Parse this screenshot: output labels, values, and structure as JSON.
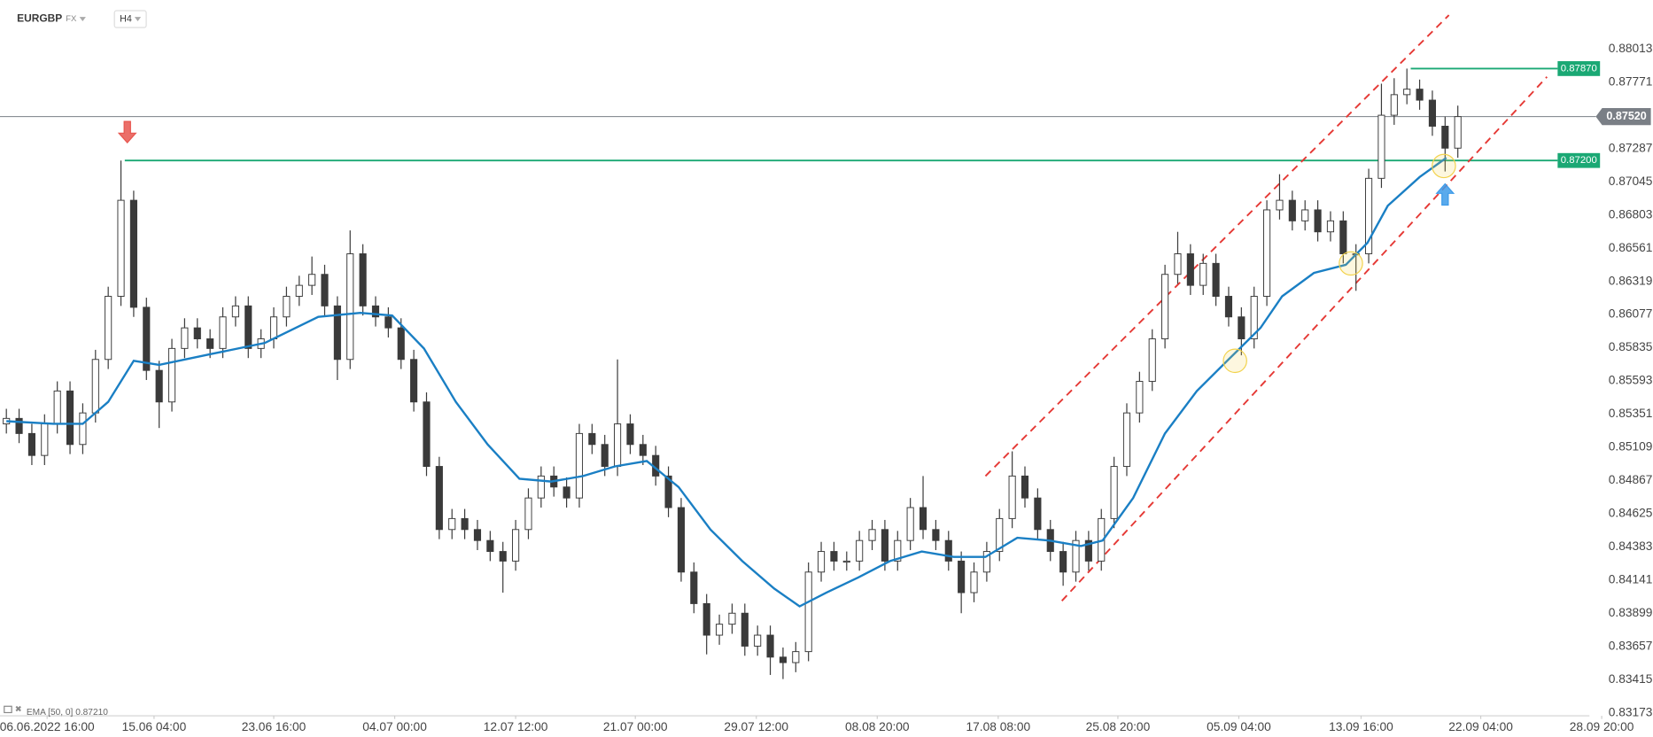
{
  "header": {
    "symbol": "EURGBP",
    "market": "FX",
    "interval": "H4"
  },
  "indicator_label": "EMA [50, 0] 0.87210",
  "chart_data": {
    "type": "candlestick",
    "up_color": "#ffffff",
    "down_color": "#3a3a3a",
    "wick_color": "#3a3a3a",
    "xlim": [
      -0.5,
      126
    ],
    "ylim": [
      0.8316,
      0.8837
    ],
    "grid": false,
    "yticks": [
      0.88013,
      0.87771,
      0.87287,
      0.87045,
      0.86803,
      0.86561,
      0.86319,
      0.86077,
      0.85835,
      0.85593,
      0.85351,
      0.85109,
      0.84867,
      0.84625,
      0.84383,
      0.84141,
      0.83899,
      0.83657,
      0.83415,
      0.83173
    ],
    "xticks": [
      {
        "value": 3.2,
        "label": "06.06.2022  16:00"
      },
      {
        "value": 11.6,
        "label": "15.06  04:00"
      },
      {
        "value": 21.0,
        "label": "23.06  16:00"
      },
      {
        "value": 30.5,
        "label": "04.07  00:00"
      },
      {
        "value": 40.0,
        "label": "12.07  12:00"
      },
      {
        "value": 49.4,
        "label": "21.07  00:00"
      },
      {
        "value": 58.9,
        "label": "29.07  12:00"
      },
      {
        "value": 68.4,
        "label": "08.08  20:00"
      },
      {
        "value": 77.9,
        "label": "17.08  08:00"
      },
      {
        "value": 87.3,
        "label": "25.08  20:00"
      },
      {
        "value": 96.8,
        "label": "05.09  04:00"
      },
      {
        "value": 106.4,
        "label": "13.09  16:00"
      },
      {
        "value": 115.8,
        "label": "22.09  04:00"
      },
      {
        "value": 125.3,
        "label": "28.09  20:00"
      }
    ],
    "ohlc": [
      [
        0.8528,
        0.8539,
        0.8521,
        0.8532
      ],
      [
        0.8532,
        0.8539,
        0.8514,
        0.8521
      ],
      [
        0.8521,
        0.8528,
        0.8498,
        0.8505
      ],
      [
        0.8505,
        0.8535,
        0.8498,
        0.8528
      ],
      [
        0.8528,
        0.8559,
        0.8521,
        0.8552
      ],
      [
        0.8552,
        0.8559,
        0.8506,
        0.8513
      ],
      [
        0.8513,
        0.8543,
        0.8506,
        0.8536
      ],
      [
        0.8536,
        0.8582,
        0.8529,
        0.8575
      ],
      [
        0.8575,
        0.8628,
        0.8568,
        0.8621
      ],
      [
        0.8621,
        0.872,
        0.8614,
        0.8691
      ],
      [
        0.8691,
        0.8698,
        0.8606,
        0.8613
      ],
      [
        0.8613,
        0.862,
        0.856,
        0.8567
      ],
      [
        0.8567,
        0.8574,
        0.8525,
        0.8544
      ],
      [
        0.8544,
        0.859,
        0.8537,
        0.8583
      ],
      [
        0.8583,
        0.8605,
        0.8576,
        0.8598
      ],
      [
        0.8598,
        0.8605,
        0.8583,
        0.859
      ],
      [
        0.859,
        0.8597,
        0.8576,
        0.8583
      ],
      [
        0.8583,
        0.8613,
        0.8576,
        0.8606
      ],
      [
        0.8606,
        0.8621,
        0.8599,
        0.8614
      ],
      [
        0.8614,
        0.8621,
        0.8576,
        0.8583
      ],
      [
        0.8583,
        0.8597,
        0.8576,
        0.859
      ],
      [
        0.859,
        0.8613,
        0.8583,
        0.8606
      ],
      [
        0.8606,
        0.8628,
        0.8599,
        0.8621
      ],
      [
        0.8621,
        0.8636,
        0.8614,
        0.8629
      ],
      [
        0.8629,
        0.865,
        0.8622,
        0.8637
      ],
      [
        0.8637,
        0.8644,
        0.8607,
        0.8614
      ],
      [
        0.8614,
        0.8621,
        0.856,
        0.8575
      ],
      [
        0.8575,
        0.8669,
        0.8568,
        0.8652
      ],
      [
        0.8652,
        0.8659,
        0.8607,
        0.8614
      ],
      [
        0.8614,
        0.8621,
        0.8599,
        0.8606
      ],
      [
        0.8606,
        0.8613,
        0.8591,
        0.8598
      ],
      [
        0.8598,
        0.8605,
        0.8568,
        0.8575
      ],
      [
        0.8575,
        0.8582,
        0.8537,
        0.8544
      ],
      [
        0.8544,
        0.8551,
        0.849,
        0.8497
      ],
      [
        0.8497,
        0.8504,
        0.8444,
        0.8451
      ],
      [
        0.8451,
        0.8466,
        0.8444,
        0.8459
      ],
      [
        0.8459,
        0.8466,
        0.8444,
        0.8451
      ],
      [
        0.8451,
        0.8458,
        0.8436,
        0.8443
      ],
      [
        0.8443,
        0.845,
        0.8428,
        0.8435
      ],
      [
        0.8435,
        0.8442,
        0.8405,
        0.8428
      ],
      [
        0.8428,
        0.8458,
        0.8421,
        0.8451
      ],
      [
        0.8451,
        0.8481,
        0.8444,
        0.8474
      ],
      [
        0.8474,
        0.8497,
        0.8467,
        0.849
      ],
      [
        0.849,
        0.8497,
        0.8475,
        0.8482
      ],
      [
        0.8482,
        0.8489,
        0.8467,
        0.8474
      ],
      [
        0.8474,
        0.8528,
        0.8467,
        0.8521
      ],
      [
        0.8521,
        0.8528,
        0.8506,
        0.8513
      ],
      [
        0.8513,
        0.852,
        0.849,
        0.8497
      ],
      [
        0.8497,
        0.8575,
        0.849,
        0.8528
      ],
      [
        0.8528,
        0.8535,
        0.8506,
        0.8513
      ],
      [
        0.8513,
        0.852,
        0.8498,
        0.8505
      ],
      [
        0.8505,
        0.8512,
        0.8483,
        0.849
      ],
      [
        0.849,
        0.8497,
        0.846,
        0.8467
      ],
      [
        0.8467,
        0.8474,
        0.8413,
        0.842
      ],
      [
        0.842,
        0.8427,
        0.839,
        0.8397
      ],
      [
        0.8397,
        0.8404,
        0.836,
        0.8374
      ],
      [
        0.8374,
        0.8389,
        0.8367,
        0.8382
      ],
      [
        0.8382,
        0.8397,
        0.8375,
        0.839
      ],
      [
        0.839,
        0.8397,
        0.8359,
        0.8366
      ],
      [
        0.8366,
        0.8381,
        0.8359,
        0.8374
      ],
      [
        0.8374,
        0.8381,
        0.8345,
        0.8358
      ],
      [
        0.8358,
        0.8365,
        0.8342,
        0.8354
      ],
      [
        0.8354,
        0.8369,
        0.8347,
        0.8362
      ],
      [
        0.8362,
        0.8427,
        0.8355,
        0.842
      ],
      [
        0.842,
        0.8442,
        0.8413,
        0.8435
      ],
      [
        0.8435,
        0.8442,
        0.8421,
        0.8428
      ],
      [
        0.8428,
        0.8435,
        0.8421,
        0.8428
      ],
      [
        0.8428,
        0.845,
        0.8421,
        0.8443
      ],
      [
        0.8443,
        0.8458,
        0.8436,
        0.8451
      ],
      [
        0.8451,
        0.8458,
        0.8421,
        0.8428
      ],
      [
        0.8428,
        0.845,
        0.8421,
        0.8443
      ],
      [
        0.8443,
        0.8474,
        0.8436,
        0.8467
      ],
      [
        0.8467,
        0.849,
        0.8444,
        0.8451
      ],
      [
        0.8451,
        0.8458,
        0.8436,
        0.8443
      ],
      [
        0.8443,
        0.845,
        0.8421,
        0.8428
      ],
      [
        0.8428,
        0.8435,
        0.839,
        0.8405
      ],
      [
        0.8405,
        0.8427,
        0.8398,
        0.842
      ],
      [
        0.842,
        0.8442,
        0.8413,
        0.8435
      ],
      [
        0.8435,
        0.8466,
        0.8428,
        0.8459
      ],
      [
        0.8459,
        0.8508,
        0.8452,
        0.849
      ],
      [
        0.849,
        0.8497,
        0.8467,
        0.8474
      ],
      [
        0.8474,
        0.8481,
        0.8444,
        0.8451
      ],
      [
        0.8451,
        0.8458,
        0.8428,
        0.8435
      ],
      [
        0.8435,
        0.8442,
        0.841,
        0.842
      ],
      [
        0.842,
        0.845,
        0.8413,
        0.8443
      ],
      [
        0.8443,
        0.845,
        0.8421,
        0.8428
      ],
      [
        0.8428,
        0.8466,
        0.8421,
        0.8459
      ],
      [
        0.8459,
        0.8504,
        0.8452,
        0.8497
      ],
      [
        0.8497,
        0.8543,
        0.849,
        0.8536
      ],
      [
        0.8536,
        0.8566,
        0.8529,
        0.8559
      ],
      [
        0.8559,
        0.8597,
        0.8552,
        0.859
      ],
      [
        0.859,
        0.8644,
        0.8583,
        0.8637
      ],
      [
        0.8637,
        0.8668,
        0.863,
        0.8652
      ],
      [
        0.8652,
        0.8659,
        0.8622,
        0.8629
      ],
      [
        0.8629,
        0.8652,
        0.8622,
        0.8645
      ],
      [
        0.8645,
        0.8652,
        0.8614,
        0.8621
      ],
      [
        0.8621,
        0.8628,
        0.8599,
        0.8606
      ],
      [
        0.8606,
        0.8613,
        0.8578,
        0.859
      ],
      [
        0.859,
        0.8628,
        0.8583,
        0.8621
      ],
      [
        0.8621,
        0.8691,
        0.8614,
        0.8684
      ],
      [
        0.8684,
        0.871,
        0.8677,
        0.8691
      ],
      [
        0.8691,
        0.8698,
        0.8669,
        0.8676
      ],
      [
        0.8676,
        0.8691,
        0.8669,
        0.8684
      ],
      [
        0.8684,
        0.8691,
        0.8661,
        0.8668
      ],
      [
        0.8668,
        0.8683,
        0.8661,
        0.8676
      ],
      [
        0.8676,
        0.8683,
        0.8645,
        0.8652
      ],
      [
        0.8652,
        0.8659,
        0.8625,
        0.8652
      ],
      [
        0.8652,
        0.8714,
        0.8645,
        0.8707
      ],
      [
        0.8707,
        0.8776,
        0.87,
        0.8753
      ],
      [
        0.8753,
        0.878,
        0.8746,
        0.8768
      ],
      [
        0.8768,
        0.8787,
        0.8761,
        0.8772
      ],
      [
        0.8772,
        0.8779,
        0.8757,
        0.8764
      ],
      [
        0.8764,
        0.8771,
        0.8738,
        0.8745
      ],
      [
        0.8745,
        0.8752,
        0.8712,
        0.8729
      ],
      [
        0.8729,
        0.876,
        0.8722,
        0.8752
      ]
    ],
    "ema": {
      "color": "#1a7fc4",
      "x": [
        0.0,
        3.7,
        6.0,
        8.0,
        10.0,
        12.0,
        16.1,
        20.3,
        24.5,
        27.8,
        30.3,
        32.8,
        35.3,
        37.8,
        40.3,
        42.8,
        45.3,
        47.8,
        50.3,
        52.8,
        55.3,
        57.8,
        60.3,
        62.3,
        64.4,
        66.9,
        69.4,
        71.9,
        74.4,
        76.9,
        79.4,
        81.9,
        84.4,
        86.1,
        88.5,
        91.0,
        93.5,
        96.0,
        98.5,
        100.2,
        102.7,
        105.2,
        106.9,
        108.5,
        111.0,
        113.1
      ],
      "values": [
        0.853,
        0.8528,
        0.8528,
        0.8544,
        0.8574,
        0.8571,
        0.8579,
        0.8587,
        0.8606,
        0.8609,
        0.8607,
        0.8583,
        0.8544,
        0.8513,
        0.8488,
        0.8486,
        0.849,
        0.8497,
        0.8501,
        0.8482,
        0.8451,
        0.8428,
        0.8408,
        0.8395,
        0.8405,
        0.8416,
        0.8428,
        0.8435,
        0.8431,
        0.8431,
        0.8445,
        0.8443,
        0.8439,
        0.8443,
        0.8474,
        0.8521,
        0.8552,
        0.8575,
        0.8598,
        0.8621,
        0.8638,
        0.8644,
        0.866,
        0.8687,
        0.8708,
        0.8722
      ]
    },
    "trend_lines": [
      {
        "color": "#e53935",
        "x": [
          76.9,
          113.3
        ],
        "y": [
          0.849,
          0.8826
        ]
      },
      {
        "color": "#e53935",
        "x": [
          82.9,
          121.0
        ],
        "y": [
          0.8399,
          0.8781
        ]
      }
    ],
    "levels": [
      {
        "value": 0.872,
        "label": "0.87200",
        "x": 9.3,
        "color": "#1aa874"
      },
      {
        "value": 0.8787,
        "label": "0.87870",
        "x": 110.3,
        "color": "#1aa874"
      }
    ],
    "last_price": {
      "value": 0.8752,
      "label": "0.87520",
      "color": "#7a7f86"
    },
    "highlights": {
      "color": "#f2d24b",
      "x": [
        96.5,
        105.6,
        112.9
      ],
      "y": [
        0.8574,
        0.8645,
        0.8716
      ]
    },
    "signals": [
      {
        "direction": "down",
        "x": 9.5,
        "y": 0.8733,
        "color": "#e8564f"
      },
      {
        "direction": "up",
        "x": 113.0,
        "y": 0.8703,
        "color": "#3d9be9"
      }
    ]
  }
}
